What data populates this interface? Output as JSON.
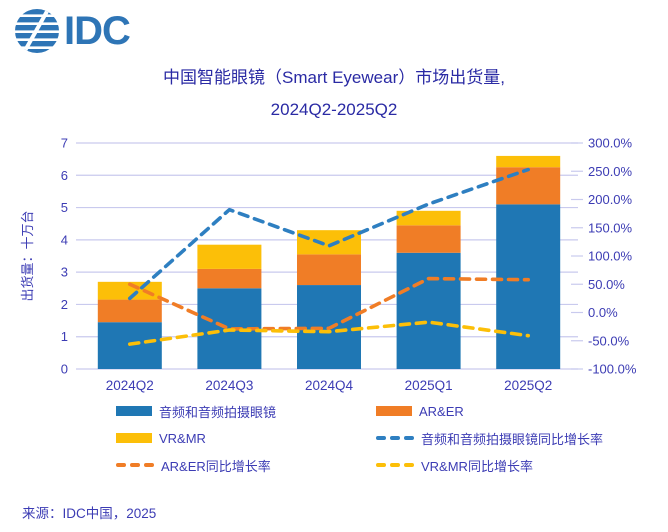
{
  "logo": {
    "text": "IDC"
  },
  "title": {
    "line1": "中国智能眼镜（Smart Eyewear）市场出货量,",
    "line2": "2024Q2-2025Q2"
  },
  "source": "来源：IDC中国，2025",
  "colors": {
    "title": "#2A2AA4",
    "text": "#3C3CB4",
    "grid": "#C9CAEE",
    "logo_blue": "#2E75B6"
  },
  "chart_data": {
    "type": "bar",
    "subtype": "stacked-bar-with-lines",
    "categories": [
      "2024Q2",
      "2024Q3",
      "2024Q4",
      "2025Q1",
      "2025Q2"
    ],
    "bar_series": [
      {
        "name": "音频和音频拍摄眼镜",
        "color": "#1F77B4",
        "values": [
          1.45,
          2.5,
          2.6,
          3.6,
          5.1
        ]
      },
      {
        "name": "AR&ER",
        "color": "#F07D26",
        "values": [
          0.7,
          0.6,
          0.95,
          0.85,
          1.15
        ]
      },
      {
        "name": "VR&MR",
        "color": "#FCBF08",
        "values": [
          0.55,
          0.75,
          0.75,
          0.45,
          0.35
        ]
      }
    ],
    "line_series": [
      {
        "name": "音频和音频拍摄眼镜同比增长率",
        "color": "#2E7FC1",
        "axis": "right",
        "values": [
          25,
          182,
          118,
          192,
          253
        ]
      },
      {
        "name": "AR&ER同比增长率",
        "color": "#F07D26",
        "axis": "right",
        "values": [
          50,
          -29,
          -28,
          60,
          58
        ]
      },
      {
        "name": "VR&MR同比增长率",
        "color": "#FCBF08",
        "axis": "right",
        "values": [
          -56,
          -31,
          -34,
          -17,
          -41
        ]
      }
    ],
    "ylabel": "出货量：十万台",
    "left_axis": {
      "min": 0,
      "max": 7,
      "step": 1,
      "ticks": [
        "0",
        "1",
        "2",
        "3",
        "4",
        "5",
        "6",
        "7"
      ]
    },
    "right_axis": {
      "min": -100,
      "max": 300,
      "step": 50,
      "ticks": [
        "300.0%",
        "250.0%",
        "200.0%",
        "150.0%",
        "100.0%",
        "50.0%",
        "0.0%",
        "-50.0%",
        "-100.0%"
      ]
    },
    "grid": true,
    "legend_position": "bottom"
  }
}
